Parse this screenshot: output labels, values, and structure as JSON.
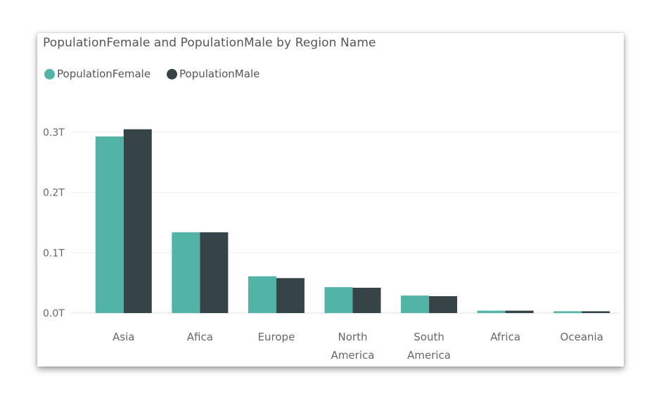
{
  "chart_data": {
    "type": "bar",
    "title": "PopulationFemale and PopulationMale by Region Name",
    "categories": [
      "Asia",
      "Afica",
      "Europe",
      "North America",
      "South America",
      "Africa",
      "Oceania"
    ],
    "category_lines": [
      [
        "Asia"
      ],
      [
        "Afica"
      ],
      [
        "Europe"
      ],
      [
        "North",
        "America"
      ],
      [
        "South",
        "America"
      ],
      [
        "Africa"
      ],
      [
        "Oceania"
      ]
    ],
    "series": [
      {
        "name": "PopulationFemale",
        "color": "#52b3a7",
        "values": [
          0.293,
          0.134,
          0.061,
          0.043,
          0.029,
          0.004,
          0.003
        ]
      },
      {
        "name": "PopulationMale",
        "color": "#374447",
        "values": [
          0.305,
          0.134,
          0.058,
          0.042,
          0.028,
          0.004,
          0.003
        ]
      }
    ],
    "value_unit": "T",
    "y_ticks": [
      "0.0T",
      "0.1T",
      "0.2T",
      "0.3T"
    ],
    "y_tick_values": [
      0,
      0.1,
      0.2,
      0.3
    ],
    "ylim": [
      0,
      0.3
    ],
    "xlabel": "",
    "ylabel": "",
    "legend_position": "top-left",
    "grid": true
  }
}
